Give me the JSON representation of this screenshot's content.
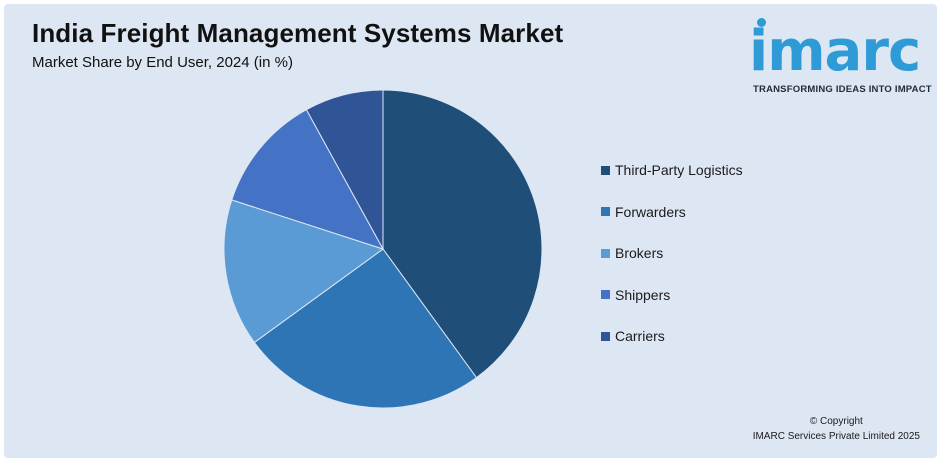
{
  "header": {
    "title": "India Freight Management Systems Market",
    "subtitle": "Market Share by End User, 2024 (in %)"
  },
  "logo": {
    "word": "imarc",
    "tagline": "TRANSFORMING IDEAS INTO IMPACT",
    "color": "#2f9bd6"
  },
  "footer": {
    "copyright_line1": "© Copyright",
    "copyright_line2": "IMARC Services Private Limited 2025"
  },
  "chart_data": {
    "type": "pie",
    "title": "India Freight Management Systems Market",
    "subtitle": "Market Share by End User, 2024 (in %)",
    "categories": [
      "Third-Party Logistics",
      "Forwarders",
      "Brokers",
      "Shippers",
      "Carriers"
    ],
    "values": [
      40,
      25,
      15,
      12,
      8
    ],
    "colors": [
      "#1f4e79",
      "#2e75b6",
      "#5b9bd5",
      "#4472c4",
      "#2f5597"
    ],
    "legend_position": "right",
    "start_angle": "top, clockwise"
  }
}
